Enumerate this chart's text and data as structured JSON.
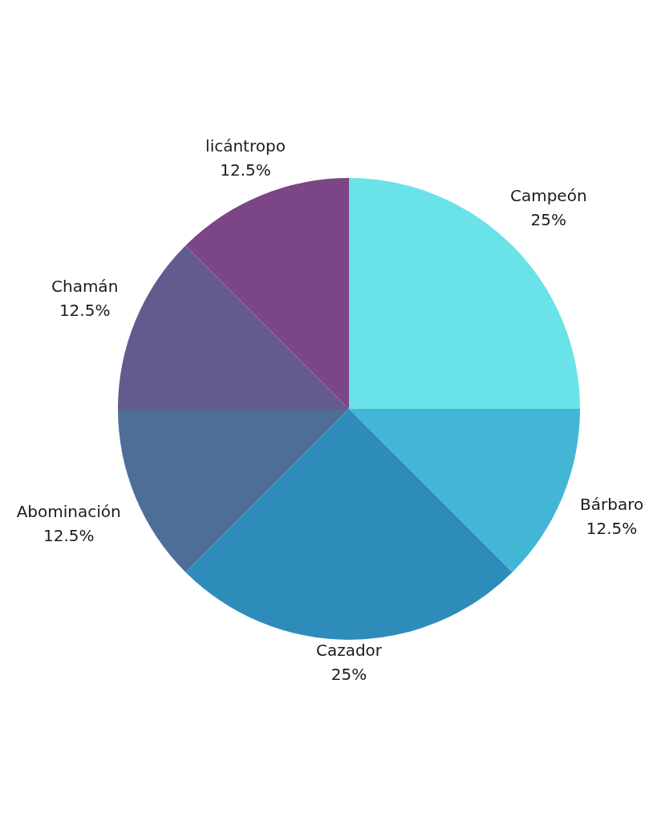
{
  "chart_data": {
    "type": "pie",
    "categories": [
      "Campeón",
      "Bárbaro",
      "Cazador",
      "Abominación",
      "Chamán",
      "licántropo"
    ],
    "values": [
      25,
      12.5,
      25,
      12.5,
      12.5,
      12.5
    ],
    "colors": [
      "#69e3e8",
      "#43b6d5",
      "#2e8cba",
      "#4e6e98",
      "#635a8d",
      "#7c4586"
    ],
    "value_labels": [
      "25%",
      "12.5%",
      "25%",
      "12.5%",
      "12.5%",
      "12.5%"
    ],
    "legend": false
  }
}
